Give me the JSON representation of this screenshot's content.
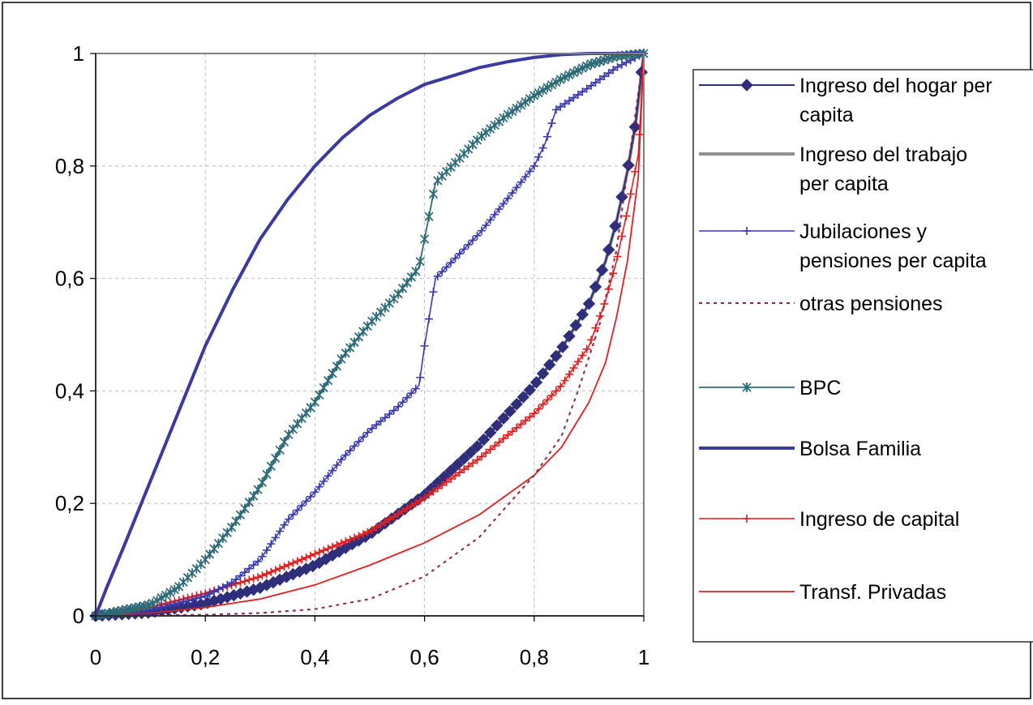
{
  "chart_data": {
    "type": "line",
    "title": "",
    "xlabel": "",
    "ylabel": "",
    "xlim": [
      0,
      1
    ],
    "ylim": [
      0,
      1
    ],
    "x_ticks": [
      "0",
      "0,2",
      "0,4",
      "0,6",
      "0,8",
      "1"
    ],
    "y_ticks": [
      "0",
      "0,2",
      "0,4",
      "0,6",
      "0,8",
      "1"
    ],
    "grid": true,
    "legend_position": "right",
    "series": [
      {
        "name": "Ingreso del hogar per capita",
        "color": "#2e2e7a",
        "style": "diamond-line",
        "points": [
          [
            0,
            0
          ],
          [
            0.1,
            0.006
          ],
          [
            0.2,
            0.022
          ],
          [
            0.3,
            0.05
          ],
          [
            0.4,
            0.09
          ],
          [
            0.5,
            0.145
          ],
          [
            0.6,
            0.215
          ],
          [
            0.7,
            0.305
          ],
          [
            0.8,
            0.41
          ],
          [
            0.85,
            0.475
          ],
          [
            0.9,
            0.555
          ],
          [
            0.93,
            0.63
          ],
          [
            0.95,
            0.7
          ],
          [
            0.97,
            0.79
          ],
          [
            0.985,
            0.875
          ],
          [
            1,
            1
          ]
        ]
      },
      {
        "name": "Ingreso del trabajo per capita",
        "color": "#909090",
        "style": "thick-line",
        "points": [
          [
            0,
            0
          ],
          [
            0.1,
            0.006
          ],
          [
            0.2,
            0.022
          ],
          [
            0.3,
            0.05
          ],
          [
            0.4,
            0.09
          ],
          [
            0.5,
            0.145
          ],
          [
            0.6,
            0.215
          ],
          [
            0.7,
            0.305
          ],
          [
            0.8,
            0.41
          ],
          [
            0.85,
            0.475
          ],
          [
            0.9,
            0.555
          ],
          [
            0.93,
            0.63
          ],
          [
            0.95,
            0.7
          ],
          [
            0.97,
            0.79
          ],
          [
            0.985,
            0.875
          ],
          [
            1,
            1
          ]
        ]
      },
      {
        "name": "Jubilaciones y pensiones per capita",
        "color": "#3a3ab0",
        "style": "plus-line",
        "points": [
          [
            0,
            0
          ],
          [
            0.1,
            0.01
          ],
          [
            0.2,
            0.035
          ],
          [
            0.25,
            0.06
          ],
          [
            0.3,
            0.1
          ],
          [
            0.35,
            0.17
          ],
          [
            0.4,
            0.22
          ],
          [
            0.45,
            0.28
          ],
          [
            0.5,
            0.33
          ],
          [
            0.55,
            0.37
          ],
          [
            0.59,
            0.41
          ],
          [
            0.6,
            0.48
          ],
          [
            0.62,
            0.6
          ],
          [
            0.65,
            0.63
          ],
          [
            0.7,
            0.68
          ],
          [
            0.75,
            0.74
          ],
          [
            0.8,
            0.8
          ],
          [
            0.82,
            0.84
          ],
          [
            0.84,
            0.9
          ],
          [
            0.9,
            0.94
          ],
          [
            0.95,
            0.975
          ],
          [
            1,
            1
          ]
        ]
      },
      {
        "name": "otras pensiones",
        "color": "#8b2252",
        "style": "dotted",
        "points": [
          [
            0,
            0
          ],
          [
            0.2,
            0.002
          ],
          [
            0.3,
            0.005
          ],
          [
            0.4,
            0.012
          ],
          [
            0.5,
            0.03
          ],
          [
            0.6,
            0.07
          ],
          [
            0.7,
            0.14
          ],
          [
            0.8,
            0.25
          ],
          [
            0.85,
            0.32
          ],
          [
            0.88,
            0.4
          ],
          [
            0.9,
            0.46
          ],
          [
            0.92,
            0.52
          ],
          [
            0.95,
            0.65
          ],
          [
            1,
            1
          ]
        ]
      },
      {
        "name": "BPC",
        "color": "#2e6b78",
        "style": "star-line",
        "points": [
          [
            0,
            0
          ],
          [
            0.1,
            0.02
          ],
          [
            0.15,
            0.05
          ],
          [
            0.2,
            0.1
          ],
          [
            0.25,
            0.16
          ],
          [
            0.3,
            0.23
          ],
          [
            0.35,
            0.32
          ],
          [
            0.4,
            0.38
          ],
          [
            0.45,
            0.46
          ],
          [
            0.5,
            0.52
          ],
          [
            0.55,
            0.57
          ],
          [
            0.59,
            0.62
          ],
          [
            0.6,
            0.67
          ],
          [
            0.62,
            0.77
          ],
          [
            0.65,
            0.8
          ],
          [
            0.7,
            0.85
          ],
          [
            0.75,
            0.89
          ],
          [
            0.8,
            0.925
          ],
          [
            0.85,
            0.955
          ],
          [
            0.9,
            0.98
          ],
          [
            0.95,
            0.995
          ],
          [
            1,
            1
          ]
        ]
      },
      {
        "name": "Bolsa Familia",
        "color": "#3a3aa0",
        "style": "thick-line",
        "points": [
          [
            0,
            0
          ],
          [
            0.02,
            0.05
          ],
          [
            0.05,
            0.12
          ],
          [
            0.1,
            0.24
          ],
          [
            0.15,
            0.36
          ],
          [
            0.2,
            0.48
          ],
          [
            0.25,
            0.58
          ],
          [
            0.3,
            0.67
          ],
          [
            0.35,
            0.74
          ],
          [
            0.4,
            0.8
          ],
          [
            0.45,
            0.85
          ],
          [
            0.5,
            0.89
          ],
          [
            0.55,
            0.92
          ],
          [
            0.6,
            0.945
          ],
          [
            0.65,
            0.96
          ],
          [
            0.7,
            0.975
          ],
          [
            0.75,
            0.985
          ],
          [
            0.8,
            0.993
          ],
          [
            0.85,
            0.998
          ],
          [
            0.9,
            1
          ],
          [
            1,
            1
          ]
        ]
      },
      {
        "name": "Ingreso de capital",
        "color": "#e02020",
        "style": "plus-line",
        "points": [
          [
            0,
            0
          ],
          [
            0.1,
            0.015
          ],
          [
            0.2,
            0.04
          ],
          [
            0.3,
            0.07
          ],
          [
            0.4,
            0.11
          ],
          [
            0.5,
            0.15
          ],
          [
            0.6,
            0.21
          ],
          [
            0.7,
            0.28
          ],
          [
            0.8,
            0.36
          ],
          [
            0.85,
            0.41
          ],
          [
            0.9,
            0.48
          ],
          [
            0.93,
            0.56
          ],
          [
            0.95,
            0.63
          ],
          [
            0.97,
            0.72
          ],
          [
            0.99,
            0.82
          ],
          [
            1,
            1
          ]
        ]
      },
      {
        "name": "Transf. Privadas",
        "color": "#e02020",
        "style": "thin-line",
        "points": [
          [
            0,
            0
          ],
          [
            0.1,
            0.005
          ],
          [
            0.2,
            0.015
          ],
          [
            0.3,
            0.03
          ],
          [
            0.4,
            0.055
          ],
          [
            0.5,
            0.09
          ],
          [
            0.6,
            0.13
          ],
          [
            0.7,
            0.18
          ],
          [
            0.8,
            0.25
          ],
          [
            0.85,
            0.3
          ],
          [
            0.9,
            0.38
          ],
          [
            0.93,
            0.45
          ],
          [
            0.95,
            0.53
          ],
          [
            0.97,
            0.63
          ],
          [
            0.99,
            0.78
          ],
          [
            1,
            1
          ]
        ]
      }
    ]
  }
}
